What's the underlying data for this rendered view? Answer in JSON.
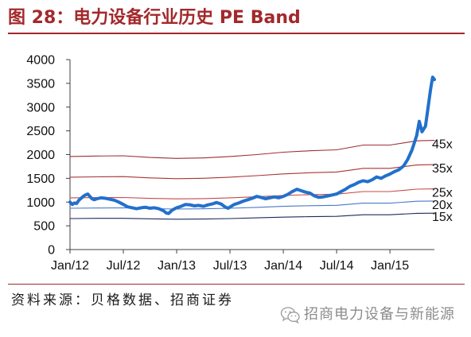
{
  "chart_data": {
    "type": "line",
    "title": "图 28：电力设备行业历史 PE Band",
    "xlabel": "",
    "ylabel": "",
    "xlim": [
      "2012-01-01",
      "2015-06-01"
    ],
    "ylim": [
      0,
      4000
    ],
    "yticks": [
      0,
      500,
      1000,
      1500,
      2000,
      2500,
      3000,
      3500,
      4000
    ],
    "xticks": [
      {
        "date": "2012-01-01",
        "label": "Jan/12"
      },
      {
        "date": "2012-07-01",
        "label": "Jul/12"
      },
      {
        "date": "2013-01-01",
        "label": "Jan/13"
      },
      {
        "date": "2013-07-01",
        "label": "Jul/13"
      },
      {
        "date": "2014-01-01",
        "label": "Jan/14"
      },
      {
        "date": "2014-07-01",
        "label": "Jul/14"
      },
      {
        "date": "2015-01-01",
        "label": "Jan/15"
      }
    ],
    "grid": false,
    "legend": "right",
    "series": [
      {
        "name": "45x",
        "color": "#9E3032",
        "x": [
          "2012-01-01",
          "2012-04-01",
          "2012-07-01",
          "2012-10-01",
          "2013-01-01",
          "2013-04-01",
          "2013-07-01",
          "2013-10-01",
          "2014-01-01",
          "2014-04-01",
          "2014-07-01",
          "2014-10-01",
          "2015-01-01",
          "2015-04-01",
          "2015-06-01"
        ],
        "y": [
          1960,
          1970,
          1975,
          1940,
          1920,
          1930,
          1960,
          2000,
          2050,
          2080,
          2100,
          2200,
          2200,
          2290,
          2300
        ]
      },
      {
        "name": "35x",
        "color": "#A93535",
        "x": [
          "2012-01-01",
          "2012-04-01",
          "2012-07-01",
          "2012-10-01",
          "2013-01-01",
          "2013-04-01",
          "2013-07-01",
          "2013-10-01",
          "2014-01-01",
          "2014-04-01",
          "2014-07-01",
          "2014-10-01",
          "2015-01-01",
          "2015-04-01",
          "2015-06-01"
        ],
        "y": [
          1524,
          1532,
          1536,
          1509,
          1493,
          1501,
          1524,
          1556,
          1594,
          1618,
          1633,
          1711,
          1711,
          1781,
          1789
        ]
      },
      {
        "name": "25x",
        "color": "#C94A4A",
        "x": [
          "2012-01-01",
          "2012-04-01",
          "2012-07-01",
          "2012-10-01",
          "2013-01-01",
          "2013-04-01",
          "2013-07-01",
          "2013-10-01",
          "2014-01-01",
          "2014-04-01",
          "2014-07-01",
          "2014-10-01",
          "2015-01-01",
          "2015-04-01",
          "2015-06-01"
        ],
        "y": [
          1089,
          1094,
          1097,
          1078,
          1067,
          1072,
          1089,
          1111,
          1139,
          1156,
          1167,
          1222,
          1222,
          1272,
          1278
        ]
      },
      {
        "name": "20x",
        "color": "#4A78C8",
        "x": [
          "2012-01-01",
          "2012-04-01",
          "2012-07-01",
          "2012-10-01",
          "2013-01-01",
          "2013-04-01",
          "2013-07-01",
          "2013-10-01",
          "2014-01-01",
          "2014-04-01",
          "2014-07-01",
          "2014-10-01",
          "2015-01-01",
          "2015-04-01",
          "2015-06-01"
        ],
        "y": [
          871,
          876,
          878,
          862,
          853,
          858,
          871,
          889,
          911,
          924,
          933,
          978,
          978,
          1018,
          1022
        ]
      },
      {
        "name": "15x",
        "color": "#1E2B5C",
        "x": [
          "2012-01-01",
          "2012-04-01",
          "2012-07-01",
          "2012-10-01",
          "2013-01-01",
          "2013-04-01",
          "2013-07-01",
          "2013-10-01",
          "2014-01-01",
          "2014-04-01",
          "2014-07-01",
          "2014-10-01",
          "2015-01-01",
          "2015-04-01",
          "2015-06-01"
        ],
        "y": [
          653,
          657,
          658,
          647,
          640,
          643,
          653,
          667,
          683,
          693,
          700,
          733,
          733,
          763,
          767
        ]
      },
      {
        "color": "#2270CC",
        "x": [
          "2012-01-01",
          "2012-01-09",
          "2012-01-16",
          "2012-01-24",
          "2012-02-01",
          "2012-02-08",
          "2012-02-15",
          "2012-02-22",
          "2012-03-01",
          "2012-03-08",
          "2012-03-16",
          "2012-03-24",
          "2012-04-01",
          "2012-04-16",
          "2012-05-01",
          "2012-05-16",
          "2012-06-01",
          "2012-06-16",
          "2012-07-01",
          "2012-07-16",
          "2012-08-01",
          "2012-08-16",
          "2012-09-01",
          "2012-09-16",
          "2012-10-01",
          "2012-10-16",
          "2012-11-01",
          "2012-11-16",
          "2012-11-26",
          "2012-12-04",
          "2012-12-16",
          "2013-01-01",
          "2013-01-16",
          "2013-02-01",
          "2013-02-16",
          "2013-03-01",
          "2013-03-16",
          "2013-04-01",
          "2013-04-16",
          "2013-05-01",
          "2013-05-16",
          "2013-06-01",
          "2013-06-16",
          "2013-06-25",
          "2013-07-05",
          "2013-07-16",
          "2013-08-01",
          "2013-08-16",
          "2013-09-01",
          "2013-09-16",
          "2013-10-01",
          "2013-10-16",
          "2013-11-01",
          "2013-11-16",
          "2013-12-01",
          "2013-12-16",
          "2014-01-01",
          "2014-01-16",
          "2014-02-01",
          "2014-02-16",
          "2014-03-01",
          "2014-03-16",
          "2014-04-01",
          "2014-04-16",
          "2014-05-01",
          "2014-05-16",
          "2014-06-01",
          "2014-06-16",
          "2014-07-01",
          "2014-07-16",
          "2014-08-01",
          "2014-08-16",
          "2014-09-01",
          "2014-09-16",
          "2014-10-01",
          "2014-10-16",
          "2014-11-01",
          "2014-11-16",
          "2014-12-01",
          "2014-12-16",
          "2015-01-01",
          "2015-01-16",
          "2015-02-01",
          "2015-02-16",
          "2015-03-01",
          "2015-03-16",
          "2015-04-01",
          "2015-04-10",
          "2015-04-19",
          "2015-05-01",
          "2015-05-10",
          "2015-05-18",
          "2015-05-22",
          "2015-05-26",
          "2015-06-01"
        ],
        "y": [
          1000,
          950,
          980,
          970,
          1040,
          1080,
          1120,
          1150,
          1170,
          1120,
          1070,
          1050,
          1070,
          1090,
          1080,
          1060,
          1040,
          1000,
          950,
          900,
          880,
          860,
          880,
          890,
          870,
          880,
          860,
          820,
          770,
          760,
          830,
          880,
          910,
          950,
          940,
          920,
          930,
          910,
          940,
          960,
          990,
          960,
          890,
          870,
          910,
          950,
          980,
          1020,
          1050,
          1080,
          1120,
          1100,
          1070,
          1090,
          1110,
          1090,
          1120,
          1160,
          1220,
          1270,
          1240,
          1210,
          1190,
          1130,
          1100,
          1110,
          1130,
          1150,
          1170,
          1220,
          1270,
          1330,
          1370,
          1420,
          1450,
          1430,
          1470,
          1530,
          1500,
          1550,
          1590,
          1640,
          1680,
          1760,
          1900,
          2100,
          2400,
          2700,
          2480,
          2600,
          3000,
          3350,
          3500,
          3630,
          3580
        ]
      }
    ]
  },
  "source": "资料来源：贝格数据、招商证券",
  "watermark": {
    "icon": "wechat-icon",
    "text": "招商电力设备与新能源"
  },
  "colors": {
    "title": "#A3282B",
    "rule": "#A3282B",
    "axis": "#404040",
    "watermark": "#8C8C8C"
  }
}
